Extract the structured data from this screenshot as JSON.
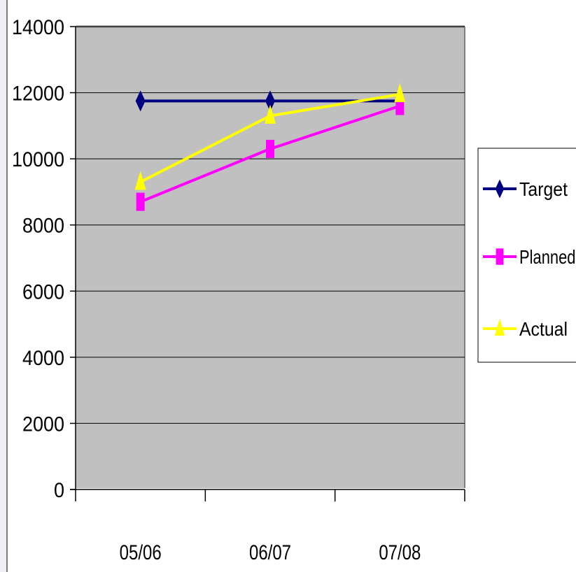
{
  "chart_data": {
    "type": "line",
    "categories": [
      "05/06",
      "06/07",
      "07/08"
    ],
    "series": [
      {
        "name": "Target",
        "values": [
          11750,
          11750,
          11750
        ],
        "color": "#000080",
        "marker": "diamond"
      },
      {
        "name": "Planned",
        "values": [
          8700,
          10300,
          11600
        ],
        "color": "#ff00ff",
        "marker": "square"
      },
      {
        "name": "Actual",
        "values": [
          9300,
          11300,
          11950
        ],
        "color": "#ffff00",
        "marker": "triangle"
      }
    ],
    "y_ticks": [
      "0",
      "2000",
      "4000",
      "6000",
      "8000",
      "10000",
      "12000",
      "14000"
    ],
    "ylim": [
      0,
      14000
    ],
    "grid": true,
    "plot_background": "#c0c0c0",
    "legend": "right"
  }
}
